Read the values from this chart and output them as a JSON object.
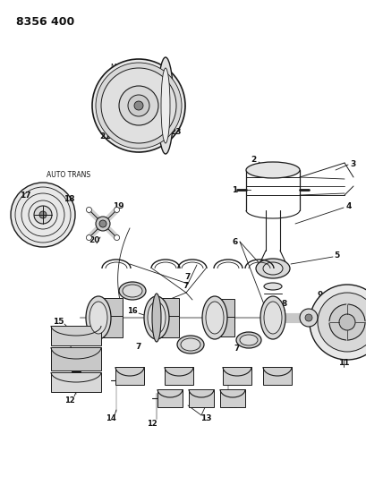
{
  "title": "8356 400",
  "background_color": "#ffffff",
  "fig_width": 4.1,
  "fig_height": 5.33,
  "dpi": 100,
  "line_color": "#1a1a1a",
  "text_color": "#111111",
  "gray_light": "#cccccc",
  "gray_mid": "#aaaaaa",
  "gray_dark": "#888888"
}
